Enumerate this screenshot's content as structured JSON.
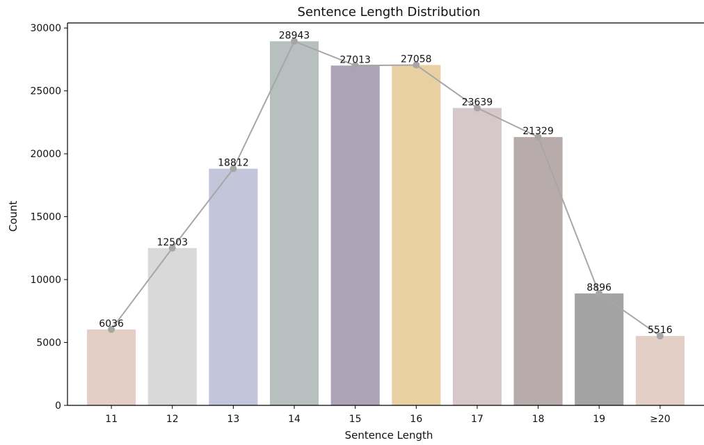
{
  "chart_data": {
    "type": "bar",
    "title": "Sentence Length Distribution",
    "xlabel": "Sentence Length",
    "ylabel": "Count",
    "categories": [
      "11",
      "12",
      "13",
      "14",
      "15",
      "16",
      "17",
      "18",
      "19",
      "≥20"
    ],
    "values": [
      6036,
      12503,
      18812,
      28943,
      27013,
      27058,
      23639,
      21329,
      8896,
      5516
    ],
    "bar_colors": [
      "#e3cfc6",
      "#d9d9d9",
      "#c3c6db",
      "#b7bfbf",
      "#ada3b6",
      "#e9d0a3",
      "#d6c8c8",
      "#b8abab",
      "#a3a3a3",
      "#e3cfc6"
    ],
    "line_overlay": {
      "color": "#a6a6a6",
      "marker": "circle"
    },
    "yticks": [
      0,
      5000,
      10000,
      15000,
      20000,
      25000,
      30000
    ],
    "ylim": [
      0,
      30400
    ],
    "grid": false
  }
}
